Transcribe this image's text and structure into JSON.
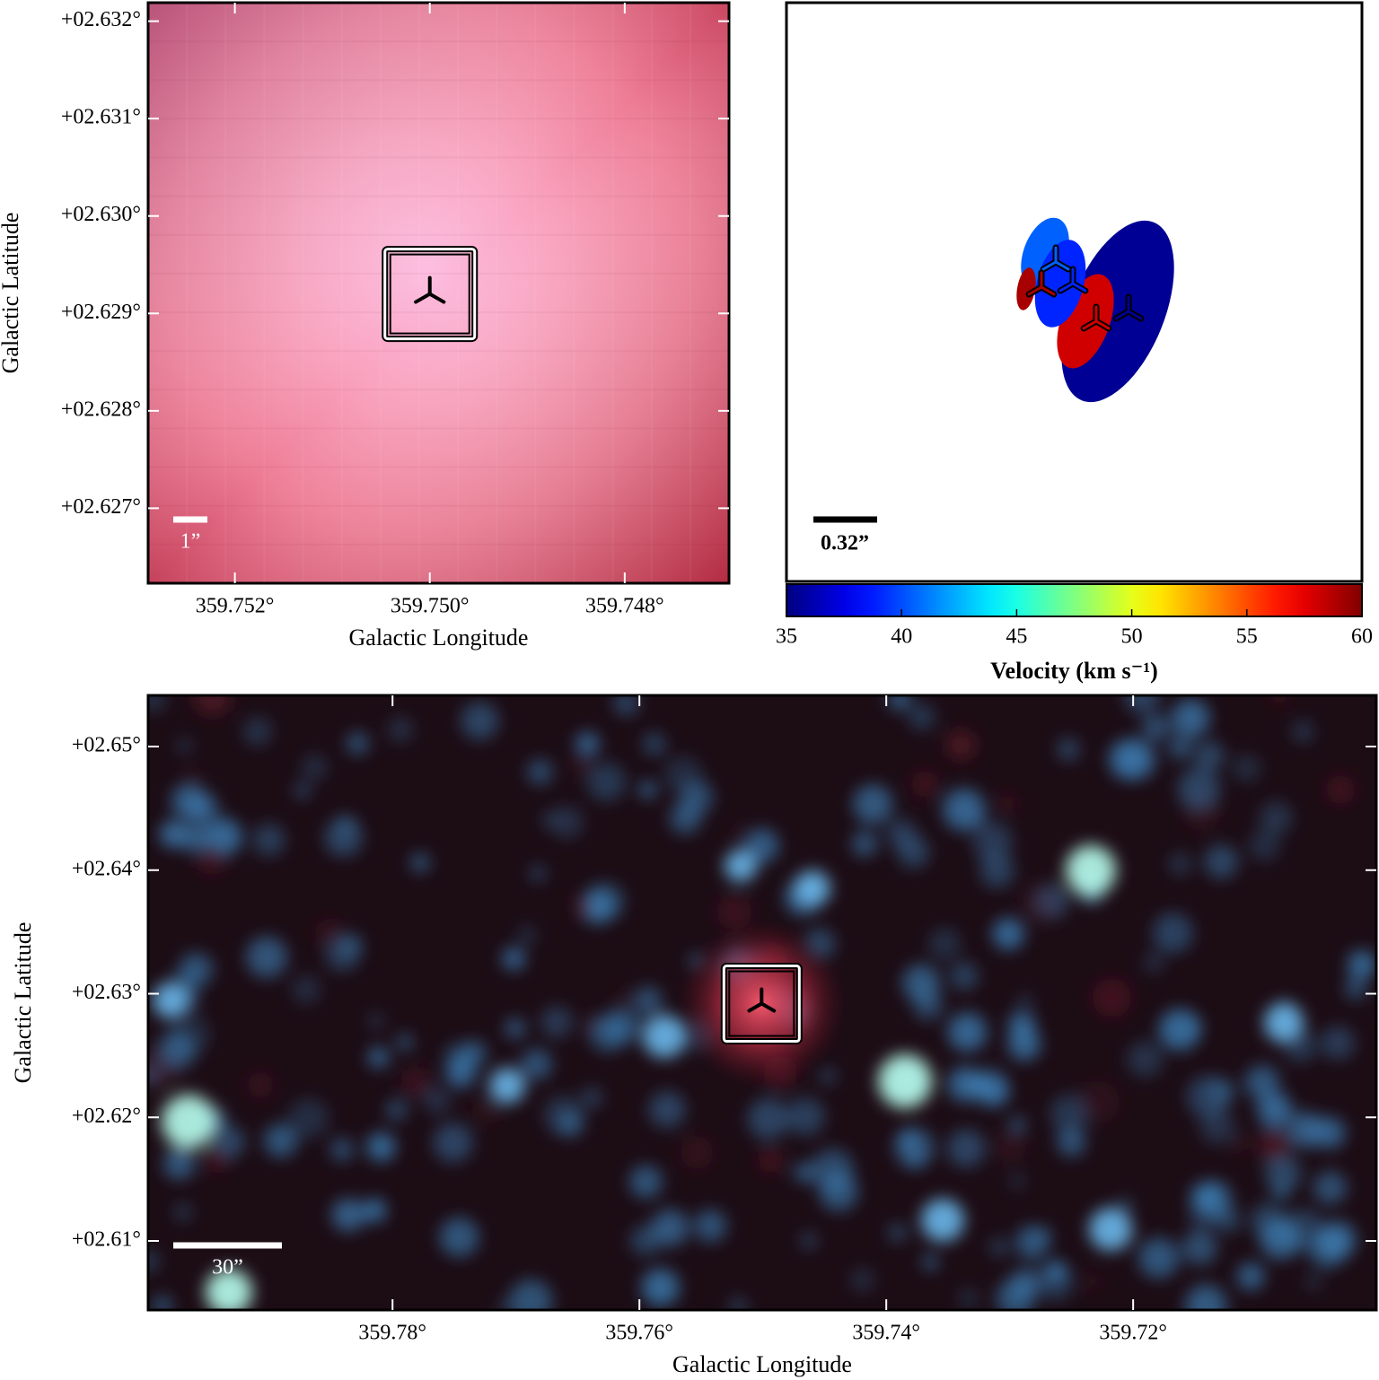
{
  "chart_data": [
    {
      "type": "image",
      "xlabel": "Galactic Longitude",
      "ylabel": "Galactic Latitude",
      "xlim": [
        359.75289,
        359.74693
      ],
      "ylim": [
        2.62623,
        2.63219
      ],
      "xticks": [
        {
          "value": 359.752,
          "label": "359.752°"
        },
        {
          "value": 359.75,
          "label": "359.750°"
        },
        {
          "value": 359.748,
          "label": "359.748°"
        }
      ],
      "yticks": [
        {
          "value": 2.627,
          "label": "+02.627°"
        },
        {
          "value": 2.628,
          "label": "+02.628°"
        },
        {
          "value": 2.629,
          "label": "+02.629°"
        },
        {
          "value": 2.63,
          "label": "+02.630°"
        },
        {
          "value": 2.631,
          "label": "+02.631°"
        },
        {
          "value": 2.632,
          "label": "+02.632°"
        }
      ],
      "source": {
        "x": 359.75,
        "y": 2.6292
      },
      "scale_bar": "1”"
    },
    {
      "type": "spots",
      "spots": {
        "velocity": [
          35.5,
          58,
          40.5,
          39,
          59
        ]
      },
      "scale_bar": "0.32”",
      "colorbar": {
        "label": "Velocity (km s⁻¹)",
        "lim": [
          35,
          60
        ],
        "ticks": [
          35,
          40,
          45,
          50,
          55,
          60
        ],
        "colormap": "jet"
      }
    },
    {
      "type": "image",
      "xlabel": "Galactic Longitude",
      "ylabel": "Galactic Latitude",
      "xlim": [
        359.7998,
        359.7003
      ],
      "ylim": [
        2.60441,
        2.65414
      ],
      "xticks": [
        {
          "value": 359.78,
          "label": "359.78°"
        },
        {
          "value": 359.76,
          "label": "359.76°"
        },
        {
          "value": 359.74,
          "label": "359.74°"
        },
        {
          "value": 359.72,
          "label": "359.72°"
        }
      ],
      "yticks": [
        {
          "value": 2.61,
          "label": "+02.61°"
        },
        {
          "value": 2.62,
          "label": "+02.62°"
        },
        {
          "value": 2.63,
          "label": "+02.63°"
        },
        {
          "value": 2.64,
          "label": "+02.64°"
        },
        {
          "value": 2.65,
          "label": "+02.65°"
        }
      ],
      "source": {
        "x": 359.7501,
        "y": 2.6292
      },
      "scale_bar": "30”"
    }
  ]
}
